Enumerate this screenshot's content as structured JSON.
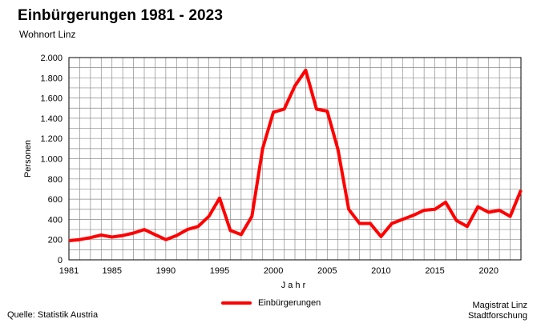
{
  "header": {
    "title": "Einbürgerungen 1981 - 2023",
    "subtitle": "Wohnort Linz"
  },
  "footer": {
    "source": "Quelle: Statistik Austria",
    "org_line1": "Magistrat Linz",
    "org_line2": "Stadtforschung"
  },
  "chart_data": {
    "type": "line",
    "title": "Einbürgerungen 1981 - 2023",
    "subtitle": "Wohnort Linz",
    "xlabel": "J a h r",
    "ylabel": "Personen",
    "xlim": [
      1981,
      2023
    ],
    "ylim": [
      0,
      2000
    ],
    "grid": true,
    "legend_position": "bottom-center",
    "x_tick_values": [
      1981,
      1985,
      1990,
      1995,
      2000,
      2005,
      2010,
      2015,
      2020
    ],
    "x_tick_labels": [
      "1981",
      "1985",
      "1990",
      "1995",
      "2000",
      "2005",
      "2010",
      "2015",
      "2020"
    ],
    "y_tick_values": [
      0,
      200,
      400,
      600,
      800,
      1000,
      1200,
      1400,
      1600,
      1800,
      2000
    ],
    "y_tick_labels": [
      "0",
      "200",
      "400",
      "600",
      "800",
      "1.000",
      "1.200",
      "1.400",
      "1.600",
      "1.800",
      "2.000"
    ],
    "series": [
      {
        "name": "Einbürgerungen",
        "color": "#ff0000",
        "x": [
          1981,
          1982,
          1983,
          1984,
          1985,
          1986,
          1987,
          1988,
          1989,
          1990,
          1991,
          1992,
          1993,
          1994,
          1995,
          1996,
          1997,
          1998,
          1999,
          2000,
          2001,
          2002,
          2003,
          2004,
          2005,
          2006,
          2007,
          2008,
          2009,
          2010,
          2011,
          2012,
          2013,
          2014,
          2015,
          2016,
          2017,
          2018,
          2019,
          2020,
          2021,
          2022,
          2023
        ],
        "values": [
          190,
          200,
          220,
          245,
          225,
          240,
          265,
          300,
          250,
          200,
          240,
          300,
          330,
          430,
          610,
          290,
          250,
          430,
          1100,
          1460,
          1490,
          1720,
          1875,
          1490,
          1470,
          1090,
          500,
          360,
          360,
          230,
          360,
          400,
          440,
          490,
          500,
          570,
          390,
          330,
          525,
          470,
          490,
          430,
          690
        ]
      }
    ]
  }
}
